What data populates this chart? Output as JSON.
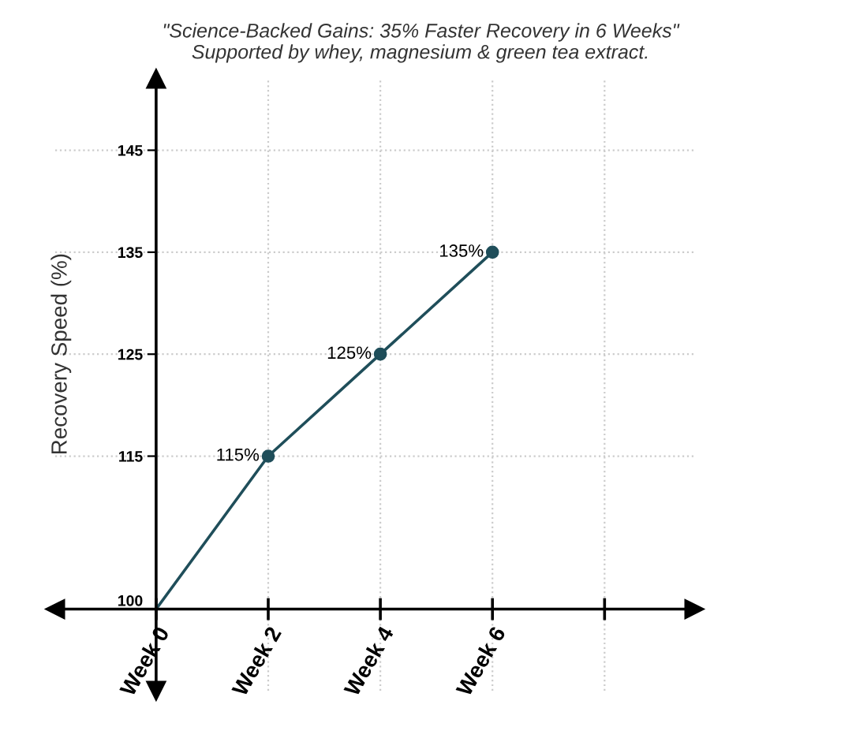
{
  "chart_data": {
    "type": "line",
    "title": "\"Science-Backed Gains: 35% Faster Recovery in 6 Weeks\"",
    "subtitle": "Supported by whey, magnesium & green tea extract.",
    "ylabel": "Recovery Speed (%)",
    "categories": [
      "Week 0",
      "Week 2",
      "Week 4",
      "Week 6",
      null
    ],
    "series": [
      {
        "color": "#1f4e5a",
        "values": [
          100,
          115,
          125,
          135,
          null
        ],
        "value_labels": [
          null,
          "115%",
          "125%",
          "135%",
          null
        ]
      }
    ],
    "ylim": [
      92,
      152
    ],
    "yticks": [
      100,
      115,
      125,
      135,
      145
    ],
    "grid": true,
    "marker": "circle",
    "line_style": "solid"
  }
}
